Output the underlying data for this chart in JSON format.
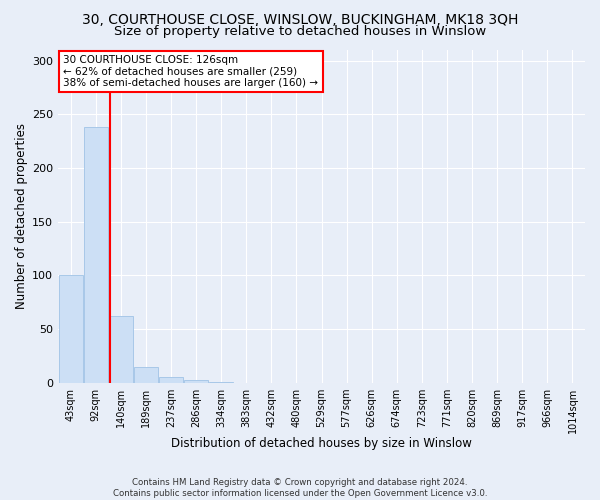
{
  "title1": "30, COURTHOUSE CLOSE, WINSLOW, BUCKINGHAM, MK18 3QH",
  "title2": "Size of property relative to detached houses in Winslow",
  "xlabel": "Distribution of detached houses by size in Winslow",
  "ylabel": "Number of detached properties",
  "bar_labels": [
    "43sqm",
    "92sqm",
    "140sqm",
    "189sqm",
    "237sqm",
    "286sqm",
    "334sqm",
    "383sqm",
    "432sqm",
    "480sqm",
    "529sqm",
    "577sqm",
    "626sqm",
    "674sqm",
    "723sqm",
    "771sqm",
    "820sqm",
    "869sqm",
    "917sqm",
    "966sqm",
    "1014sqm"
  ],
  "bar_values": [
    100,
    238,
    62,
    15,
    5,
    3,
    1,
    0,
    0,
    0,
    0,
    0,
    0,
    0,
    0,
    0,
    0,
    0,
    0,
    0,
    0
  ],
  "bar_color": "#ccdff5",
  "bar_edge_color": "#a8c8e8",
  "annotation_line1": "30 COURTHOUSE CLOSE: 126sqm",
  "annotation_line2": "← 62% of detached houses are smaller (259)",
  "annotation_line3": "38% of semi-detached houses are larger (160) →",
  "ylim": [
    0,
    310
  ],
  "yticks": [
    0,
    50,
    100,
    150,
    200,
    250,
    300
  ],
  "footer1": "Contains HM Land Registry data © Crown copyright and database right 2024.",
  "footer2": "Contains public sector information licensed under the Open Government Licence v3.0.",
  "bg_color": "#e8eef8",
  "grid_color": "#ffffff",
  "title1_fontsize": 10,
  "title2_fontsize": 9.5,
  "xlabel_fontsize": 8.5,
  "ylabel_fontsize": 8.5,
  "red_line_x": 1.58
}
